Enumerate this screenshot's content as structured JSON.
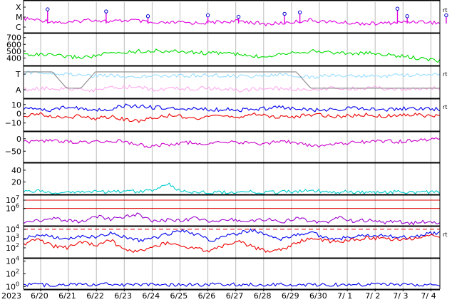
{
  "chart_data": [
    {
      "type": "line",
      "panel_id": "xray_flares",
      "y_tick_labels": [
        "X",
        "M",
        "C"
      ],
      "right_marker": "rt",
      "series": [
        {
          "color": "#e000e0",
          "values": [
            0.55,
            0.62,
            0.7,
            0.58,
            0.65,
            0.6,
            0.72,
            0.68,
            0.7,
            0.66,
            0.63,
            0.74,
            0.69,
            0.6,
            0.66,
            0.7,
            0.72,
            0.68,
            0.64,
            0.7
          ]
        }
      ],
      "flare_markers": [
        {
          "date": "6/20",
          "pos": 0.25,
          "level": 0.05
        },
        {
          "date": "6/22",
          "pos": 0.35,
          "level": 0.12
        },
        {
          "date": "6/23",
          "pos": 0.85,
          "level": 0.28
        },
        {
          "date": "6/26",
          "pos": 0.0,
          "level": 0.25
        },
        {
          "date": "6/27",
          "pos": 0.1,
          "level": 0.3
        },
        {
          "date": "6/28",
          "pos": 0.75,
          "level": 0.2
        },
        {
          "date": "6/29",
          "pos": 0.3,
          "level": 0.15
        },
        {
          "date": "7/ 2",
          "pos": 0.8,
          "level": 0.03
        },
        {
          "date": "7/ 3",
          "pos": 0.15,
          "level": 0.28
        },
        {
          "date": "7/ 4",
          "pos": 0.55,
          "level": 0.25
        }
      ]
    },
    {
      "type": "line",
      "panel_id": "solar_wind_speed",
      "y_ticks": [
        400,
        500,
        600,
        700
      ],
      "ylim": [
        300,
        760
      ],
      "series": [
        {
          "color": "#00dd00",
          "values": [
            455,
            450,
            440,
            420,
            410,
            430,
            470,
            480,
            500,
            505,
            500,
            495,
            480,
            470,
            480,
            450,
            420,
            430,
            470,
            490,
            500,
            490,
            475,
            465,
            470,
            455,
            430,
            410,
            380,
            360
          ]
        }
      ]
    },
    {
      "type": "line",
      "panel_id": "imf_direction",
      "y_tick_labels": [
        "T",
        "A"
      ],
      "right_marker": "rt",
      "series": [
        {
          "color": "#99ddff",
          "values": [
            0.22,
            0.2,
            0.25,
            0.3,
            0.28,
            0.35,
            0.3,
            0.32,
            0.28,
            0.3,
            0.33,
            0.3,
            0.28,
            0.35,
            0.3,
            0.3,
            0.32,
            0.3,
            0.29,
            0.27
          ]
        },
        {
          "color": "#ffaaee",
          "values": [
            0.75,
            0.7,
            0.72,
            0.78,
            0.7,
            0.65,
            0.75,
            0.72,
            0.7,
            0.73,
            0.76,
            0.7,
            0.72,
            0.75,
            0.7,
            0.72,
            0.68,
            0.75,
            0.72,
            0.7
          ]
        },
        {
          "color": "#888888",
          "values": [
            0.18,
            0.18,
            0.18,
            0.7,
            0.7,
            0.18,
            0.18,
            0.18,
            0.18,
            0.18,
            0.18,
            0.18,
            0.18,
            0.18,
            0.18,
            0.18,
            0.18,
            0.18,
            0.18,
            0.18,
            0.7,
            0.7,
            0.7,
            0.7,
            0.7,
            0.7,
            0.7,
            0.7,
            0.7,
            0.7
          ]
        }
      ]
    },
    {
      "type": "line",
      "panel_id": "imf_bz",
      "y_ticks": [
        10,
        0,
        -10
      ],
      "ylim": [
        -18,
        16
      ],
      "right_marker": "rt",
      "series": [
        {
          "color": "#0000ee",
          "values": [
            6,
            5,
            4,
            7,
            6,
            4,
            5,
            9,
            8,
            7,
            6,
            5,
            6,
            4,
            5,
            4,
            5,
            6,
            7,
            5,
            4,
            4,
            5,
            6,
            5,
            4,
            5,
            6,
            5,
            5
          ]
        },
        {
          "color": "#ee0000",
          "values": [
            -2,
            0,
            -3,
            -4,
            -2,
            -5,
            -3,
            -6,
            -8,
            -4,
            -2,
            -3,
            -5,
            -4,
            -2,
            -3,
            -1,
            -2,
            -4,
            -3,
            -1,
            -2,
            -3,
            -2,
            -1,
            -3,
            -2,
            -1,
            -2,
            -2
          ]
        }
      ]
    },
    {
      "type": "line",
      "panel_id": "dst_index",
      "y_ticks": [
        0,
        -50
      ],
      "ylim": [
        -92,
        25
      ],
      "series": [
        {
          "color": "#cc00cc",
          "values": [
            -10,
            -12,
            -8,
            -12,
            -15,
            -10,
            -12,
            -8,
            -20,
            -30,
            -25,
            -20,
            -15,
            -20,
            -18,
            -12,
            -15,
            -20,
            -15,
            -10,
            -20,
            -30,
            -25,
            -18,
            -15,
            -12,
            -10,
            -12,
            -8,
            -5,
            0
          ]
        }
      ]
    },
    {
      "type": "line",
      "panel_id": "proton_density",
      "y_ticks": [
        20,
        40
      ],
      "ylim": [
        0,
        52
      ],
      "series": [
        {
          "color": "#00cccc",
          "values": [
            3,
            4,
            2,
            3,
            4,
            3,
            4,
            3,
            4,
            5,
            18,
            3,
            4,
            3,
            2,
            3,
            3,
            2,
            3,
            4,
            6,
            4,
            3,
            3,
            2,
            3,
            3,
            2,
            3,
            2
          ]
        }
      ]
    },
    {
      "type": "line",
      "panel_id": "electron_flux",
      "y_tick_labels": [
        "10^7",
        "10^6"
      ],
      "ylim": [
        4,
        7.6
      ],
      "threshold_lines": [
        7,
        6
      ],
      "series": [
        {
          "color": "#9900cc",
          "values": [
            4.3,
            4.5,
            4.8,
            4.6,
            4.4,
            5.1,
            4.7,
            5.0,
            5.3,
            4.4,
            4.6,
            4.5,
            4.9,
            4.3,
            4.8,
            4.5,
            4.6,
            4.7,
            4.4,
            4.8,
            4.5,
            4.3,
            4.9,
            4.4,
            4.6,
            4.3,
            4.5,
            4.2,
            4.4,
            4.3
          ]
        }
      ]
    },
    {
      "type": "line",
      "panel_id": "proton_flux",
      "y_tick_labels": [
        "10^4",
        "10^3",
        "10^2"
      ],
      "ylim": [
        1,
        4.3
      ],
      "threshold_lines": [
        4
      ],
      "right_marker": "rt",
      "series": [
        {
          "color": "#0000ee",
          "values": [
            3.0,
            3.4,
            3.2,
            2.9,
            3.3,
            3.1,
            3.6,
            3.2,
            2.8,
            3.0,
            3.5,
            3.8,
            3.5,
            2.8,
            3.2,
            3.6,
            3.9,
            3.3,
            2.9,
            3.4,
            3.7,
            3.1,
            3.0,
            3.2,
            3.4,
            3.3,
            3.2,
            3.1,
            3.5,
            3.6
          ]
        },
        {
          "color": "#ee0000",
          "values": [
            2.4,
            2.9,
            2.2,
            2.0,
            2.7,
            2.3,
            2.9,
            1.8,
            1.6,
            2.1,
            2.5,
            2.2,
            1.9,
            1.7,
            2.3,
            2.7,
            2.1,
            1.6,
            1.8,
            2.6,
            3.0,
            2.8,
            2.6,
            2.9,
            3.1,
            3.0,
            2.9,
            3.0,
            3.2,
            3.3
          ]
        }
      ]
    },
    {
      "type": "line",
      "panel_id": "particle_flux_low",
      "y_tick_labels": [
        "10^4",
        "10^2",
        "10^0"
      ],
      "ylim": [
        -0.3,
        4.4
      ],
      "series": [
        {
          "color": "#0000ee",
          "values": [
            0.3,
            0.25,
            0.3,
            0.35,
            0.3,
            0.3,
            0.3,
            0.28,
            0.3,
            0.3,
            0.32,
            0.3,
            0.3,
            0.28,
            0.3,
            0.3,
            0.3,
            0.3,
            0.32,
            0.3
          ]
        }
      ]
    }
  ],
  "time_axis": {
    "year_label": "2023",
    "date_labels": [
      "6/20",
      "6/21",
      "6/22",
      "6/23",
      "6/24",
      "6/25",
      "6/26",
      "6/27",
      "6/28",
      "6/29",
      "6/30",
      "7/ 1",
      "7/ 2",
      "7/ 3",
      "7/ 4"
    ]
  }
}
